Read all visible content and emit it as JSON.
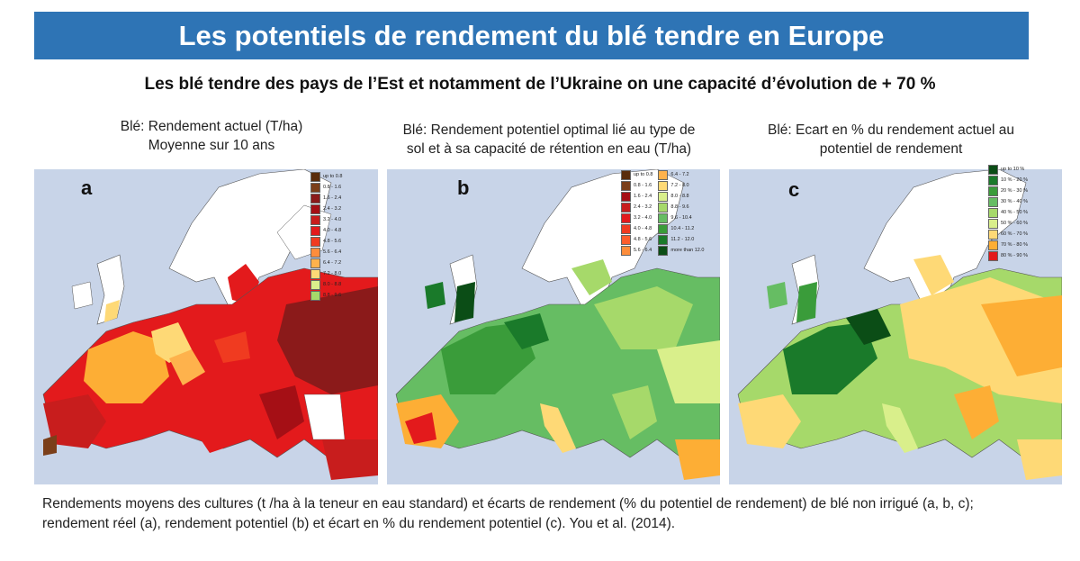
{
  "title": "Les potentiels de rendement du blé tendre en Europe",
  "subtitle": "Les blé tendre des pays de l’Est et notamment de l’Ukraine on une capacité d’évolution de + 70 %",
  "panels": [
    {
      "letter": "a",
      "caption_line1": "Blé: Rendement actuel (T/ha)",
      "caption_line2": "Moyenne sur 10 ans",
      "legend": [
        {
          "label": "up to 0.8",
          "color": "#5a2d0c"
        },
        {
          "label": "0.8 - 1.6",
          "color": "#7b3f1a"
        },
        {
          "label": "1.6 - 2.4",
          "color": "#8b1a1a"
        },
        {
          "label": "2.4 - 3.2",
          "color": "#a50f15"
        },
        {
          "label": "3.2 - 4.0",
          "color": "#c81d1d"
        },
        {
          "label": "4.0 - 4.8",
          "color": "#e31a1c"
        },
        {
          "label": "4.8 - 5.6",
          "color": "#f03b20"
        },
        {
          "label": "5.6 - 6.4",
          "color": "#fd8d3c"
        },
        {
          "label": "6.4 - 7.2",
          "color": "#feb24c"
        },
        {
          "label": "7.2 - 8.0",
          "color": "#fed976"
        },
        {
          "label": "8.0 - 8.8",
          "color": "#d9ef8b"
        },
        {
          "label": "8.8 - 9.6",
          "color": "#a6d96a"
        }
      ]
    },
    {
      "letter": "b",
      "caption_line1": "Blé: Rendement potentiel optimal lié au type de",
      "caption_line2": "sol et à sa capacité de rétention en eau (T/ha)",
      "legend": [
        {
          "label": "up to 0.8",
          "color": "#5a2d0c"
        },
        {
          "label": "0.8 - 1.6",
          "color": "#7b3f1a"
        },
        {
          "label": "1.6 - 2.4",
          "color": "#a50f15"
        },
        {
          "label": "2.4 - 3.2",
          "color": "#c81d1d"
        },
        {
          "label": "3.2 - 4.0",
          "color": "#e31a1c"
        },
        {
          "label": "4.0 - 4.8",
          "color": "#f03b20"
        },
        {
          "label": "4.8 - 5.6",
          "color": "#fd5d2c"
        },
        {
          "label": "5.6 - 6.4",
          "color": "#fd8d3c"
        },
        {
          "label": "6.4 - 7.2",
          "color": "#feb24c"
        },
        {
          "label": "7.2 - 8.0",
          "color": "#fed976"
        },
        {
          "label": "8.0 - 8.8",
          "color": "#d9ef8b"
        },
        {
          "label": "8.8 - 9.6",
          "color": "#a6d96a"
        },
        {
          "label": "9.6 - 10.4",
          "color": "#66bd63"
        },
        {
          "label": "10.4 - 11.2",
          "color": "#3a9c3a"
        },
        {
          "label": "11.2 - 12.0",
          "color": "#1a7a2a"
        },
        {
          "label": "more than 12.0",
          "color": "#0b4d16"
        }
      ]
    },
    {
      "letter": "c",
      "caption_line1": "Blé: Ecart en % du rendement actuel au",
      "caption_line2": "potentiel de rendement",
      "legend": [
        {
          "label": "up to 10 %",
          "color": "#0b4d16"
        },
        {
          "label": "10 % - 20 %",
          "color": "#1a7a2a"
        },
        {
          "label": "20 % - 30 %",
          "color": "#3a9c3a"
        },
        {
          "label": "30 % - 40 %",
          "color": "#66bd63"
        },
        {
          "label": "40 % - 50 %",
          "color": "#a6d96a"
        },
        {
          "label": "50 % - 60 %",
          "color": "#d9ef8b"
        },
        {
          "label": "60 % - 70 %",
          "color": "#fed976"
        },
        {
          "label": "70 % - 80 %",
          "color": "#fdae35"
        },
        {
          "label": "80 % - 90 %",
          "color": "#e31a1c"
        }
      ]
    }
  ],
  "footer_line1": "Rendements moyens des cultures (t /ha à la teneur en eau standard) et écarts de rendement (% du potentiel de rendement) de blé non irrigué (a, b, c);",
  "footer_line2": "rendement réel (a), rendement potentiel (b) et écart en % du rendement potentiel (c). You et al. (2014).",
  "colors": {
    "title_bg": "#2e74b5",
    "sea": "#c8d4e8",
    "land_blank": "#ffffff",
    "border": "#333333"
  }
}
